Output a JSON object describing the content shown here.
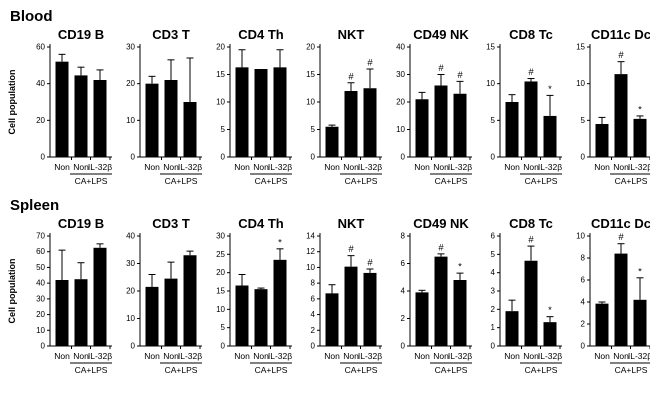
{
  "figure": {
    "background": "#ffffff",
    "bar_color": "#000000",
    "axis_color": "#000000"
  },
  "chart_data": {
    "type": "bar",
    "ylabel": "Cell population",
    "categories": [
      "Non",
      "Non",
      "IL-32β"
    ],
    "bracket_label": "CA+LPS",
    "bracket_spans_categories": [
      1,
      2
    ],
    "legend": "none",
    "grid": false,
    "significance_symbols": [
      "#",
      "*"
    ],
    "groups": [
      {
        "label": "Blood",
        "panels": [
          {
            "title": "CD19 B",
            "ylim": [
              0,
              60
            ],
            "yticks": [
              0,
              20,
              40,
              60
            ],
            "values": [
              52,
              44.5,
              42
            ],
            "errors": [
              4,
              4.5,
              5.5
            ],
            "sig": [
              "",
              "",
              ""
            ]
          },
          {
            "title": "CD3 T",
            "ylim": [
              0,
              30
            ],
            "yticks": [
              0,
              10,
              20,
              30
            ],
            "values": [
              20,
              21,
              15
            ],
            "errors": [
              2,
              5.5,
              12
            ],
            "sig": [
              "",
              "",
              ""
            ]
          },
          {
            "title": "CD4 Th",
            "ylim": [
              0,
              20
            ],
            "yticks": [
              0,
              5,
              10,
              15,
              20
            ],
            "values": [
              16.3,
              16,
              16.3
            ],
            "errors": [
              3.2,
              0,
              3.2
            ],
            "sig": [
              "",
              "",
              ""
            ]
          },
          {
            "title": "NKT",
            "ylim": [
              0,
              20
            ],
            "yticks": [
              0,
              5,
              10,
              15,
              20
            ],
            "values": [
              5.5,
              12,
              12.5
            ],
            "errors": [
              0.3,
              1.5,
              3.5
            ],
            "sig": [
              "",
              "#",
              "#"
            ]
          },
          {
            "title": "CD49 NK",
            "ylim": [
              0,
              40
            ],
            "yticks": [
              0,
              10,
              20,
              30,
              40
            ],
            "values": [
              21,
              26,
              23
            ],
            "errors": [
              2.5,
              4,
              4.5
            ],
            "sig": [
              "",
              "#",
              "#"
            ]
          },
          {
            "title": "CD8 Tc",
            "ylim": [
              0,
              15
            ],
            "yticks": [
              0,
              5,
              10,
              15
            ],
            "values": [
              7.5,
              10.3,
              5.6
            ],
            "errors": [
              1,
              0.4,
              2.8
            ],
            "sig": [
              "",
              "#",
              "*"
            ]
          },
          {
            "title": "CD11c Dc",
            "ylim": [
              0,
              15
            ],
            "yticks": [
              0,
              5,
              10,
              15
            ],
            "values": [
              4.5,
              11.3,
              5.2
            ],
            "errors": [
              0.9,
              1.7,
              0.4
            ],
            "sig": [
              "",
              "#",
              "*"
            ]
          }
        ]
      },
      {
        "label": "Spleen",
        "panels": [
          {
            "title": "CD19 B",
            "ylim": [
              0,
              70
            ],
            "yticks": [
              0,
              10,
              20,
              30,
              40,
              50,
              60,
              70
            ],
            "values": [
              42,
              42.5,
              62.5
            ],
            "errors": [
              19,
              10.5,
              2.5
            ],
            "sig": [
              "",
              "",
              ""
            ]
          },
          {
            "title": "CD3 T",
            "ylim": [
              0,
              40
            ],
            "yticks": [
              0,
              10,
              20,
              30,
              40
            ],
            "values": [
              21.5,
              24.5,
              33
            ],
            "errors": [
              4.5,
              6,
              1.5
            ],
            "sig": [
              "",
              "",
              ""
            ]
          },
          {
            "title": "CD4 Th",
            "ylim": [
              0,
              30
            ],
            "yticks": [
              0,
              5,
              10,
              15,
              20,
              25,
              30
            ],
            "values": [
              16.5,
              15.5,
              23.5
            ],
            "errors": [
              3,
              0.3,
              3
            ],
            "sig": [
              "",
              "",
              "*"
            ]
          },
          {
            "title": "NKT",
            "ylim": [
              0,
              14
            ],
            "yticks": [
              0,
              2,
              4,
              6,
              8,
              10,
              12,
              14
            ],
            "values": [
              6.7,
              10.1,
              9.3
            ],
            "errors": [
              1.1,
              1.4,
              0.5
            ],
            "sig": [
              "",
              "#",
              "#"
            ]
          },
          {
            "title": "CD49 NK",
            "ylim": [
              0,
              8
            ],
            "yticks": [
              0,
              2,
              4,
              6,
              8
            ],
            "values": [
              3.9,
              6.5,
              4.8
            ],
            "errors": [
              0.15,
              0.2,
              0.5
            ],
            "sig": [
              "",
              "#",
              "*"
            ]
          },
          {
            "title": "CD8 Tc",
            "ylim": [
              0,
              6
            ],
            "yticks": [
              0,
              1,
              2,
              3,
              4,
              5,
              6
            ],
            "values": [
              1.9,
              4.65,
              1.3
            ],
            "errors": [
              0.6,
              0.8,
              0.3
            ],
            "sig": [
              "",
              "#",
              "*"
            ]
          },
          {
            "title": "CD11c Dc",
            "ylim": [
              0,
              10
            ],
            "yticks": [
              0,
              2,
              4,
              6,
              8,
              10
            ],
            "values": [
              3.85,
              8.4,
              4.2
            ],
            "errors": [
              0.15,
              0.9,
              2
            ],
            "sig": [
              "",
              "#",
              "*"
            ]
          }
        ]
      }
    ]
  }
}
